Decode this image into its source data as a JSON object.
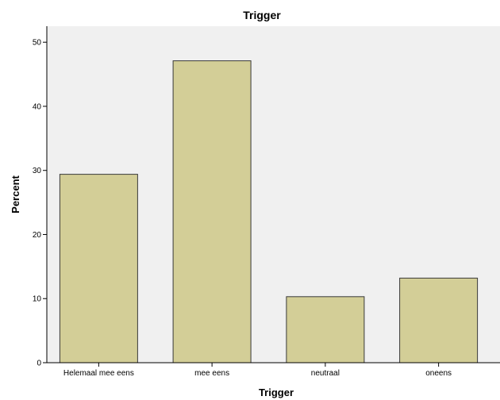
{
  "chart_data": {
    "type": "bar",
    "title": "Trigger",
    "xlabel": "Trigger",
    "ylabel": "Percent",
    "categories": [
      "Helemaal mee eens",
      "mee eens",
      "neutraal",
      "oneens"
    ],
    "values": [
      29.4,
      47.1,
      10.3,
      13.2
    ],
    "ylim": [
      0,
      52.5
    ],
    "yticks": [
      0,
      10,
      20,
      30,
      40,
      50
    ],
    "grid": false,
    "colors": {
      "plot_background": "#f0f0f0",
      "bar_fill": "#d3ce97",
      "bar_stroke": "#3a3a3a",
      "axis": "#000000"
    }
  }
}
